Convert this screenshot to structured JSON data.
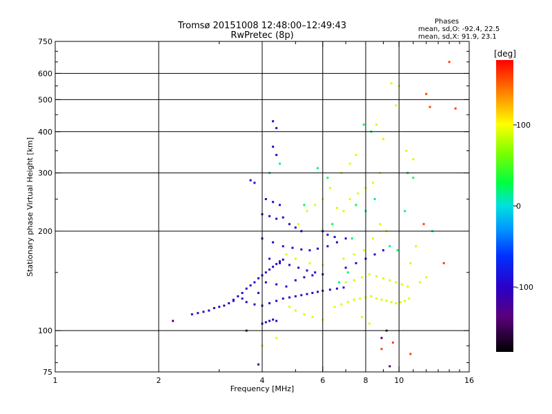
{
  "chart_data": {
    "type": "scatter",
    "title": "Tromsø 20151008 12:48:00–12:49:43",
    "subtitle": "RwPretec (8p)",
    "xlabel": "Frequency [MHz]",
    "ylabel": "Stationary phase Virtual Height [km]",
    "x_scale": "log",
    "y_scale": "log",
    "xlim": [
      1,
      16
    ],
    "ylim": [
      75,
      750
    ],
    "x_ticks": [
      1,
      2,
      4,
      6,
      8,
      10,
      16
    ],
    "y_ticks": [
      75,
      100,
      200,
      300,
      400,
      500,
      600,
      750
    ],
    "x_gridlines": [
      2,
      4,
      6,
      8,
      10
    ],
    "y_gridlines": [
      100,
      200,
      300,
      400,
      500,
      600
    ],
    "grid": true,
    "colorbar": {
      "label": "[deg]",
      "range": [
        -180,
        180
      ],
      "ticks": [
        100,
        0,
        -100
      ],
      "colormap": "rainbow (black-purple-blue-cyan-green-yellow-red)"
    },
    "stats_box": {
      "header": "Phases",
      "line_o": "mean, sd,O: -92.4, 22.5",
      "line_x": "mean, sd,X: 91.9, 23.1"
    },
    "series": [
      {
        "mode": "O",
        "phase_deg": -100,
        "points": [
          [
            2.5,
            112
          ],
          [
            2.6,
            113
          ],
          [
            2.7,
            114
          ],
          [
            2.8,
            115
          ],
          [
            2.9,
            117
          ],
          [
            3.0,
            118
          ],
          [
            3.1,
            119
          ],
          [
            3.2,
            121
          ],
          [
            3.3,
            124
          ],
          [
            3.4,
            127
          ],
          [
            3.5,
            130
          ],
          [
            3.6,
            134
          ],
          [
            3.7,
            137
          ],
          [
            3.8,
            140
          ],
          [
            3.9,
            144
          ],
          [
            4.0,
            147
          ],
          [
            4.1,
            150
          ],
          [
            4.2,
            153
          ],
          [
            4.3,
            156
          ],
          [
            4.4,
            159
          ],
          [
            4.5,
            162
          ],
          [
            4.6,
            164
          ],
          [
            3.6,
            122
          ],
          [
            3.8,
            120
          ],
          [
            4.0,
            119
          ],
          [
            4.2,
            121
          ],
          [
            4.4,
            123
          ],
          [
            4.6,
            125
          ],
          [
            4.8,
            126
          ],
          [
            5.0,
            127
          ],
          [
            5.2,
            128
          ],
          [
            5.4,
            129
          ],
          [
            5.6,
            130
          ],
          [
            5.8,
            131
          ],
          [
            6.0,
            132
          ],
          [
            6.3,
            133
          ],
          [
            6.6,
            134
          ],
          [
            6.9,
            135
          ],
          [
            4.0,
            105
          ],
          [
            4.1,
            106
          ],
          [
            4.2,
            107
          ],
          [
            4.3,
            108
          ],
          [
            4.4,
            107
          ],
          [
            4.0,
            225
          ],
          [
            4.2,
            222
          ],
          [
            4.4,
            218
          ],
          [
            4.6,
            220
          ],
          [
            4.1,
            250
          ],
          [
            4.3,
            245
          ],
          [
            4.5,
            240
          ],
          [
            4.0,
            190
          ],
          [
            4.3,
            185
          ],
          [
            4.6,
            180
          ],
          [
            4.9,
            178
          ],
          [
            5.2,
            176
          ],
          [
            5.5,
            175
          ],
          [
            5.8,
            177
          ],
          [
            6.2,
            180
          ],
          [
            6.6,
            185
          ],
          [
            7.0,
            190
          ],
          [
            4.2,
            165
          ],
          [
            4.5,
            160
          ],
          [
            4.8,
            158
          ],
          [
            5.1,
            155
          ],
          [
            5.4,
            152
          ],
          [
            5.7,
            150
          ],
          [
            6.0,
            148
          ],
          [
            4.1,
            140
          ],
          [
            4.4,
            138
          ],
          [
            4.7,
            136
          ],
          [
            5.0,
            142
          ],
          [
            5.3,
            145
          ],
          [
            5.6,
            147
          ],
          [
            3.7,
            285
          ],
          [
            3.8,
            280
          ],
          [
            4.3,
            430
          ],
          [
            4.4,
            410
          ],
          [
            4.3,
            360
          ],
          [
            4.4,
            340
          ],
          [
            6.0,
            200
          ],
          [
            6.2,
            195
          ],
          [
            6.5,
            192
          ],
          [
            7.0,
            155
          ],
          [
            7.5,
            160
          ],
          [
            8.0,
            165
          ],
          [
            8.5,
            170
          ],
          [
            9.0,
            175
          ],
          [
            3.9,
            130
          ],
          [
            3.5,
            125
          ],
          [
            3.3,
            123
          ],
          [
            4.8,
            210
          ],
          [
            5.0,
            205
          ],
          [
            5.2,
            200
          ]
        ]
      },
      {
        "mode": "X",
        "phase_deg": 90,
        "points": [
          [
            6.5,
            118
          ],
          [
            6.8,
            120
          ],
          [
            7.1,
            122
          ],
          [
            7.4,
            124
          ],
          [
            7.7,
            125
          ],
          [
            8.0,
            126
          ],
          [
            8.3,
            127
          ],
          [
            8.6,
            125
          ],
          [
            8.9,
            124
          ],
          [
            9.2,
            123
          ],
          [
            9.5,
            122
          ],
          [
            9.8,
            121
          ],
          [
            10.1,
            122
          ],
          [
            10.4,
            123
          ],
          [
            10.7,
            125
          ],
          [
            7.0,
            140
          ],
          [
            7.4,
            142
          ],
          [
            7.8,
            145
          ],
          [
            8.2,
            148
          ],
          [
            8.6,
            146
          ],
          [
            9.0,
            144
          ],
          [
            9.4,
            142
          ],
          [
            9.8,
            140
          ],
          [
            10.2,
            138
          ],
          [
            10.6,
            136
          ],
          [
            5.0,
            115
          ],
          [
            5.3,
            112
          ],
          [
            5.6,
            110
          ],
          [
            6.0,
            108
          ],
          [
            4.8,
            118
          ],
          [
            6.6,
            235
          ],
          [
            6.9,
            230
          ],
          [
            7.2,
            250
          ],
          [
            7.6,
            260
          ],
          [
            8.0,
            270
          ],
          [
            8.4,
            280
          ],
          [
            8.8,
            300
          ],
          [
            6.8,
            300
          ],
          [
            7.2,
            320
          ],
          [
            7.5,
            340
          ],
          [
            9.5,
            560
          ],
          [
            10.0,
            550
          ],
          [
            9.8,
            480
          ],
          [
            8.6,
            420
          ],
          [
            9.0,
            380
          ],
          [
            10.5,
            350
          ],
          [
            11.0,
            330
          ],
          [
            6.3,
            270
          ],
          [
            6.0,
            250
          ],
          [
            5.7,
            240
          ],
          [
            5.4,
            230
          ],
          [
            5.1,
            210
          ],
          [
            4.7,
            170
          ],
          [
            5.0,
            165
          ],
          [
            5.5,
            160
          ],
          [
            6.0,
            158
          ],
          [
            11.5,
            140
          ],
          [
            12.0,
            145
          ],
          [
            10.8,
            160
          ],
          [
            11.2,
            180
          ],
          [
            9.2,
            200
          ],
          [
            8.8,
            210
          ],
          [
            8.4,
            190
          ],
          [
            7.9,
            175
          ],
          [
            7.4,
            170
          ],
          [
            6.9,
            165
          ],
          [
            4.4,
            95
          ],
          [
            4.0,
            90
          ],
          [
            7.8,
            110
          ],
          [
            8.2,
            105
          ]
        ]
      },
      {
        "mode": "scatter",
        "phase_deg": 20,
        "points": [
          [
            7.5,
            240
          ],
          [
            8.0,
            230
          ],
          [
            8.5,
            250
          ],
          [
            6.2,
            290
          ],
          [
            5.8,
            310
          ],
          [
            9.4,
            180
          ],
          [
            9.9,
            175
          ],
          [
            10.4,
            230
          ],
          [
            6.7,
            140
          ],
          [
            7.1,
            150
          ],
          [
            4.2,
            300
          ],
          [
            4.5,
            320
          ],
          [
            8.3,
            400
          ],
          [
            7.9,
            420
          ],
          [
            10.6,
            300
          ],
          [
            11.0,
            290
          ],
          [
            5.3,
            240
          ],
          [
            6.4,
            210
          ],
          [
            7.3,
            190
          ],
          [
            12.5,
            200
          ]
        ]
      },
      {
        "mode": "scatter",
        "phase_deg": 160,
        "points": [
          [
            12.0,
            520
          ],
          [
            14.0,
            650
          ],
          [
            12.3,
            475
          ],
          [
            14.6,
            470
          ],
          [
            10.8,
            85
          ],
          [
            11.8,
            210
          ],
          [
            13.5,
            160
          ],
          [
            9.6,
            92
          ],
          [
            8.9,
            88
          ]
        ]
      },
      {
        "mode": "scatter",
        "phase_deg": -140,
        "points": [
          [
            9.4,
            78
          ],
          [
            8.9,
            95
          ],
          [
            9.2,
            100
          ],
          [
            2.2,
            107
          ],
          [
            3.6,
            100
          ],
          [
            3.9,
            79
          ]
        ]
      }
    ]
  }
}
